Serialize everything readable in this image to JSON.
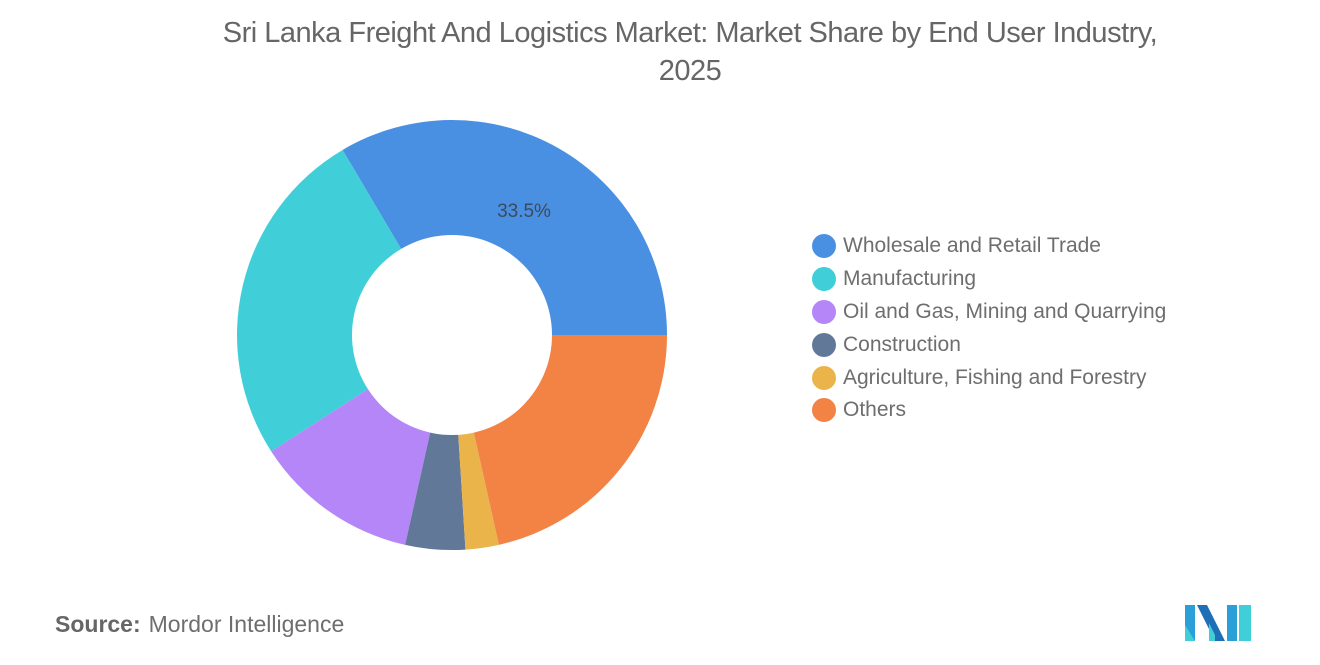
{
  "title": "Sri Lanka Freight And Logistics Market: Market Share by End User Industry, 2025",
  "title_lines": [
    "Sri Lanka Freight And Logistics Market: Market Share by End User Industry,",
    "2025"
  ],
  "chart_data": {
    "type": "pie",
    "subtype": "donut",
    "title": "Sri Lanka Freight And Logistics Market: Market Share by End User Industry, 2025",
    "categories": [
      "Wholesale and Retail Trade",
      "Manufacturing",
      "Oil and Gas, Mining and Quarrying",
      "Construction",
      "Agriculture, Fishing and Forestry",
      "Others"
    ],
    "values": [
      33.5,
      25.6,
      12.4,
      4.5,
      2.5,
      21.5
    ],
    "colors": [
      "#4a90e2",
      "#40cfd9",
      "#b486f8",
      "#627899",
      "#ebb44b",
      "#f28345"
    ],
    "data_labels": [
      {
        "category": "Wholesale and Retail Trade",
        "text": "33.5%"
      }
    ],
    "unit": "%",
    "legend_position": "right"
  },
  "legend": {
    "items": [
      {
        "label": "Wholesale and Retail Trade",
        "color": "#4a90e2"
      },
      {
        "label": "Manufacturing",
        "color": "#40cfd9"
      },
      {
        "label": "Oil and Gas, Mining and Quarrying",
        "color": "#b486f8"
      },
      {
        "label": "Construction",
        "color": "#627899"
      },
      {
        "label": "Agriculture, Fishing and Forestry",
        "color": "#ebb44b"
      },
      {
        "label": "Others",
        "color": "#f28345"
      }
    ]
  },
  "slice_label": "33.5%",
  "source": {
    "prefix": "Source:",
    "name": "Mordor Intelligence"
  },
  "logo": {
    "icon": "mordor-intelligence-logo-icon"
  }
}
